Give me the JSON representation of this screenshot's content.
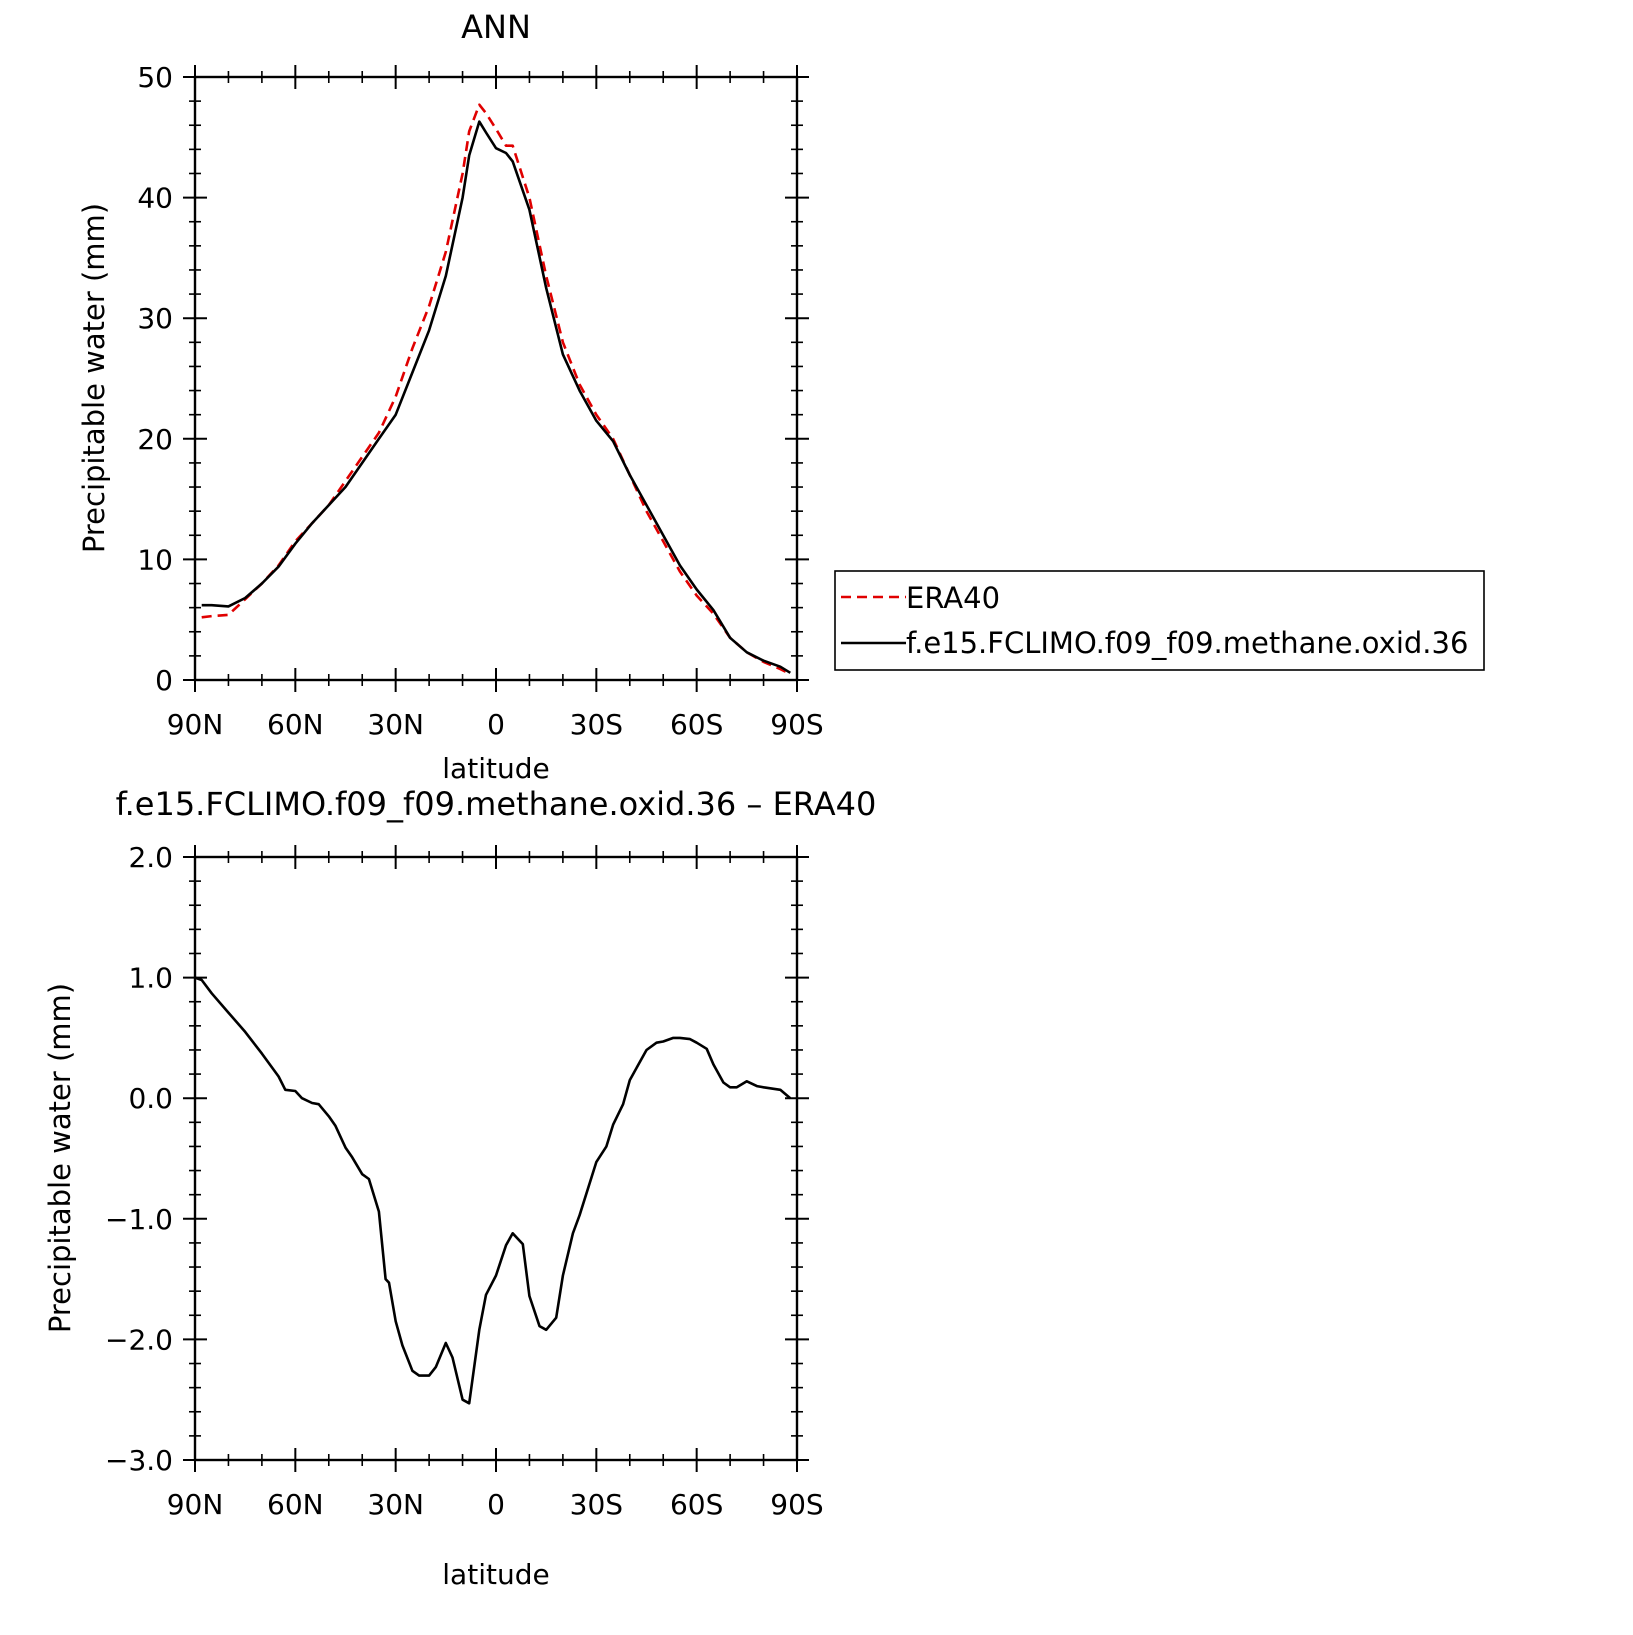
{
  "chart_data": [
    {
      "type": "line",
      "title": "ANN",
      "xlabel": "latitude",
      "ylabel": "Precipitable water (mm)",
      "xlim": [
        90,
        -90
      ],
      "ylim": [
        0,
        50
      ],
      "x_ticks": [
        90,
        60,
        30,
        0,
        -30,
        -60,
        -90
      ],
      "x_tick_labels": [
        "90N",
        "60N",
        "30N",
        "0",
        "30S",
        "60S",
        "90S"
      ],
      "y_ticks": [
        0,
        10,
        20,
        30,
        40,
        50
      ],
      "y_tick_labels": [
        "0",
        "10",
        "20",
        "30",
        "40",
        "50"
      ],
      "legend_position": "right",
      "series": [
        {
          "name": "ERA40",
          "color": "#e00000",
          "dash": "dashed",
          "x": [
            88,
            85,
            80,
            75,
            70,
            65,
            60,
            55,
            50,
            45,
            40,
            35,
            30,
            25,
            20,
            15,
            10,
            8,
            5,
            3,
            0,
            -3,
            -5,
            -10,
            -15,
            -20,
            -25,
            -30,
            -35,
            -40,
            -45,
            -50,
            -55,
            -60,
            -65,
            -70,
            -75,
            -80,
            -85,
            -88
          ],
          "y": [
            5.2,
            5.3,
            5.4,
            6.7,
            8.0,
            9.5,
            11.5,
            13.0,
            14.5,
            16.5,
            18.5,
            20.5,
            23.5,
            27.5,
            31.0,
            35.5,
            42.0,
            45.5,
            47.7,
            47.0,
            45.7,
            44.3,
            44.3,
            40.0,
            33.5,
            28.0,
            24.5,
            22.0,
            20.0,
            17.0,
            14.0,
            11.5,
            9.0,
            7.0,
            5.5,
            3.5,
            2.3,
            1.5,
            0.9,
            0.5
          ]
        },
        {
          "name": "f.e15.FCLIMO.f09_f09.methane.oxid.36",
          "color": "#000000",
          "dash": "solid",
          "x": [
            88,
            85,
            80,
            75,
            70,
            65,
            60,
            55,
            50,
            45,
            40,
            35,
            30,
            25,
            20,
            15,
            10,
            8,
            5,
            3,
            0,
            -3,
            -5,
            -10,
            -15,
            -20,
            -25,
            -30,
            -35,
            -40,
            -45,
            -50,
            -55,
            -60,
            -65,
            -70,
            -75,
            -80,
            -85,
            -88
          ],
          "y": [
            6.2,
            6.2,
            6.1,
            6.8,
            8.0,
            9.4,
            11.3,
            13.0,
            14.5,
            16.0,
            18.0,
            20.0,
            22.0,
            25.5,
            29.0,
            33.5,
            40.0,
            43.5,
            46.3,
            45.4,
            44.1,
            43.7,
            43.0,
            39.0,
            32.5,
            27.0,
            24.0,
            21.5,
            19.8,
            17.0,
            14.5,
            12.0,
            9.5,
            7.5,
            5.8,
            3.5,
            2.3,
            1.6,
            1.1,
            0.6
          ]
        }
      ]
    },
    {
      "type": "line",
      "title": "f.e15.FCLIMO.f09_f09.methane.oxid.36 – ERA40",
      "xlabel": "latitude",
      "ylabel": "Precipitable water (mm)",
      "xlim": [
        90,
        -90
      ],
      "ylim": [
        -3.0,
        2.0
      ],
      "x_ticks": [
        90,
        60,
        30,
        0,
        -30,
        -60,
        -90
      ],
      "x_tick_labels": [
        "90N",
        "60N",
        "30N",
        "0",
        "30S",
        "60S",
        "90S"
      ],
      "y_ticks": [
        -3.0,
        -2.0,
        -1.0,
        0.0,
        1.0,
        2.0
      ],
      "y_tick_labels": [
        "−3.0",
        "−2.0",
        "−1.0",
        "0.0",
        "1.0",
        "2.0"
      ],
      "series": [
        {
          "color": "#000000",
          "dash": "solid",
          "x": [
            90,
            88,
            85,
            80,
            75,
            70,
            65,
            63,
            60,
            58,
            55,
            53,
            50,
            48,
            45,
            43,
            40,
            38,
            35,
            33,
            32,
            30,
            28,
            25,
            23,
            20,
            18,
            15,
            13,
            10,
            8,
            5,
            3,
            0,
            -3,
            -5,
            -8,
            -10,
            -13,
            -15,
            -18,
            -20,
            -23,
            -25,
            -30,
            -33,
            -35,
            -38,
            -40,
            -45,
            -48,
            -50,
            -53,
            -55,
            -58,
            -60,
            -63,
            -65,
            -68,
            -70,
            -72,
            -75,
            -78,
            -80,
            -85,
            -88
          ],
          "y": [
            1.0,
            0.98,
            0.87,
            0.71,
            0.55,
            0.37,
            0.18,
            0.07,
            0.06,
            0.0,
            -0.04,
            -0.05,
            -0.15,
            -0.23,
            -0.41,
            -0.49,
            -0.63,
            -0.67,
            -0.94,
            -1.5,
            -1.53,
            -1.85,
            -2.05,
            -2.26,
            -2.3,
            -2.3,
            -2.23,
            -2.03,
            -2.15,
            -2.5,
            -2.53,
            -1.92,
            -1.63,
            -1.47,
            -1.22,
            -1.12,
            -1.21,
            -1.64,
            -1.89,
            -1.92,
            -1.82,
            -1.47,
            -1.12,
            -0.97,
            -0.53,
            -0.4,
            -0.22,
            -0.05,
            0.15,
            0.4,
            0.46,
            0.47,
            0.5,
            0.5,
            0.49,
            0.46,
            0.41,
            0.28,
            0.13,
            0.09,
            0.09,
            0.14,
            0.1,
            0.09,
            0.07,
            0.0
          ]
        }
      ]
    }
  ]
}
